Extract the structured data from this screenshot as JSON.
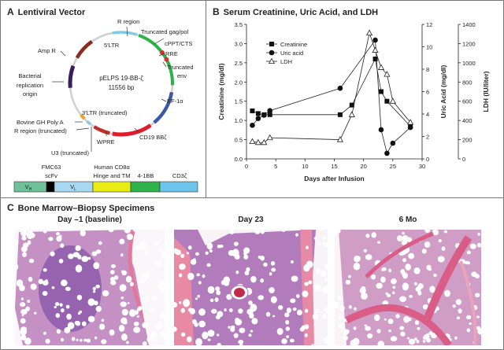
{
  "panelA": {
    "letter": "A",
    "title": "Lentiviral Vector",
    "plasmid_name": "pELPS 19-BB-ζ",
    "plasmid_size": "11556 bp",
    "labels": {
      "r_region": "R region",
      "ltr5": "5′LTR",
      "gagpol": "Truncated gag/pol",
      "cppt": "cPPT/CTS",
      "rre": "RRE",
      "env1": "Truncated",
      "env2": "env",
      "ef1a": "EF-1α",
      "cd19": "CD19 BBζ",
      "wpre": "WPRE",
      "u3": "U3 (truncated)",
      "ltr3": "3′LTR (truncated)",
      "bgh": "Bovine GH Poly A",
      "r_trunc": "R region (truncated)",
      "ampr": "Amp R",
      "ori1": "Bacterial",
      "ori2": "replication",
      "ori3": "origin"
    },
    "construct": {
      "header_fmc63": "FMC63",
      "header_scfv": "scFv",
      "header_cd8a": "Human CD8α",
      "header_hinge": "Hinge and TM",
      "header_41bb": "4-1BB",
      "header_cd3z": "CD3ζ",
      "vh": "V",
      "vh_sub": "H",
      "vl": "V",
      "vl_sub": "L"
    },
    "colors": {
      "vh": "#6fc19a",
      "linker": "#000000",
      "vl": "#a7d8f2",
      "cd8": "#e8ec14",
      "bb": "#2db34a",
      "cd3z": "#6cc4ea",
      "ring": "#c8c8c8"
    }
  },
  "panelB": {
    "letter": "B",
    "title": "Serum Creatinine, Uric Acid, and LDH"
  },
  "chart_data": {
    "type": "line",
    "title": "Serum Creatinine, Uric Acid, and LDH",
    "xlabel": "Days after Infusion",
    "xlim": [
      0,
      30
    ],
    "xticks": [
      0,
      5,
      10,
      15,
      20,
      25,
      30
    ],
    "axes": [
      {
        "id": "creat",
        "label": "Creatinine (mg/dl)",
        "side": "left",
        "lim": [
          0,
          3.5
        ],
        "ticks": [
          "0.0",
          "0.5",
          "1.0",
          "1.5",
          "2.0",
          "2.5",
          "3.0",
          "3.5"
        ]
      },
      {
        "id": "uric",
        "label": "Uric Acid (mg/dl)",
        "side": "right",
        "lim": [
          0,
          12
        ],
        "ticks": [
          "0",
          "2",
          "4",
          "6",
          "8",
          "10",
          "12"
        ]
      },
      {
        "id": "ldh",
        "label": "LDH (IU/liter)",
        "side": "right-outer",
        "lim": [
          0,
          1400
        ],
        "ticks": [
          "0",
          "200",
          "400",
          "600",
          "800",
          "1000",
          "1200",
          "1400"
        ]
      }
    ],
    "legend_position": "top-left",
    "grid": false,
    "series": [
      {
        "name": "Creatinine",
        "axis": "creat",
        "marker": "square-filled",
        "x": [
          1,
          2,
          3,
          4,
          16,
          18,
          22,
          23,
          24,
          28
        ],
        "y": [
          1.25,
          1.18,
          1.15,
          1.15,
          1.15,
          1.4,
          2.6,
          1.75,
          1.5,
          0.85
        ]
      },
      {
        "name": "Uric acid",
        "axis": "uric",
        "marker": "circle-filled",
        "x": [
          1,
          2,
          3,
          4,
          16,
          22,
          23,
          24,
          25,
          28
        ],
        "y": [
          3.0,
          3.6,
          3.9,
          4.3,
          6.3,
          10.6,
          2.6,
          0.5,
          1.4,
          2.8
        ]
      },
      {
        "name": "LDH",
        "axis": "ldh",
        "marker": "triangle-open",
        "x": [
          1,
          2,
          3,
          4,
          16,
          18,
          21,
          22,
          23,
          24,
          25,
          28
        ],
        "y": [
          180,
          170,
          170,
          220,
          200,
          460,
          1310,
          1130,
          950,
          880,
          600,
          380
        ]
      }
    ]
  },
  "panelC": {
    "letter": "C",
    "title": "Bone Marrow–Biopsy Specimens",
    "specimens": [
      {
        "label": "Day –1 (baseline)"
      },
      {
        "label": "Day 23"
      },
      {
        "label": "6 Mo"
      }
    ],
    "colors": {
      "tissue": "#b877b8",
      "dense": "#8a5aaa",
      "bone": "#d45f86",
      "fat": "#ffffff",
      "bg": "#f7f1f5"
    }
  }
}
